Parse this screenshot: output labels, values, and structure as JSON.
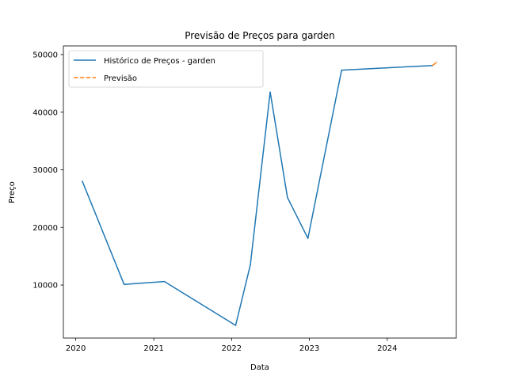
{
  "chart_data": {
    "type": "line",
    "title": "Previsão de Preços para garden",
    "xlabel": "Data",
    "ylabel": "Preço",
    "xlim": [
      "2019-11-04",
      "2024-11-20"
    ],
    "ylim": [
      800,
      51500
    ],
    "x_ticks": [
      {
        "label": "2020",
        "date": "2020-01-01"
      },
      {
        "label": "2021",
        "date": "2021-01-01"
      },
      {
        "label": "2022",
        "date": "2022-01-01"
      },
      {
        "label": "2023",
        "date": "2023-01-01"
      },
      {
        "label": "2024",
        "date": "2024-01-01"
      }
    ],
    "y_ticks": [
      10000,
      20000,
      30000,
      40000,
      50000
    ],
    "grid": false,
    "legend_position": "top-left",
    "series": [
      {
        "name": "Histórico de Preços - garden",
        "color": "#1f77b4",
        "style": "solid",
        "points": [
          {
            "x": "2020-02-01",
            "y": 28000
          },
          {
            "x": "2020-08-15",
            "y": 10100
          },
          {
            "x": "2021-02-20",
            "y": 10600
          },
          {
            "x": "2022-01-20",
            "y": 3000
          },
          {
            "x": "2022-03-30",
            "y": 13500
          },
          {
            "x": "2022-07-01",
            "y": 43500
          },
          {
            "x": "2022-09-20",
            "y": 25200
          },
          {
            "x": "2022-12-25",
            "y": 18100
          },
          {
            "x": "2023-06-01",
            "y": 47300
          },
          {
            "x": "2024-08-01",
            "y": 48100
          }
        ]
      },
      {
        "name": "Previsão",
        "color": "#ff7f0e",
        "style": "dashed",
        "points": [
          {
            "x": "2024-08-01",
            "y": 48100
          },
          {
            "x": "2024-08-20",
            "y": 48700
          }
        ]
      }
    ]
  }
}
